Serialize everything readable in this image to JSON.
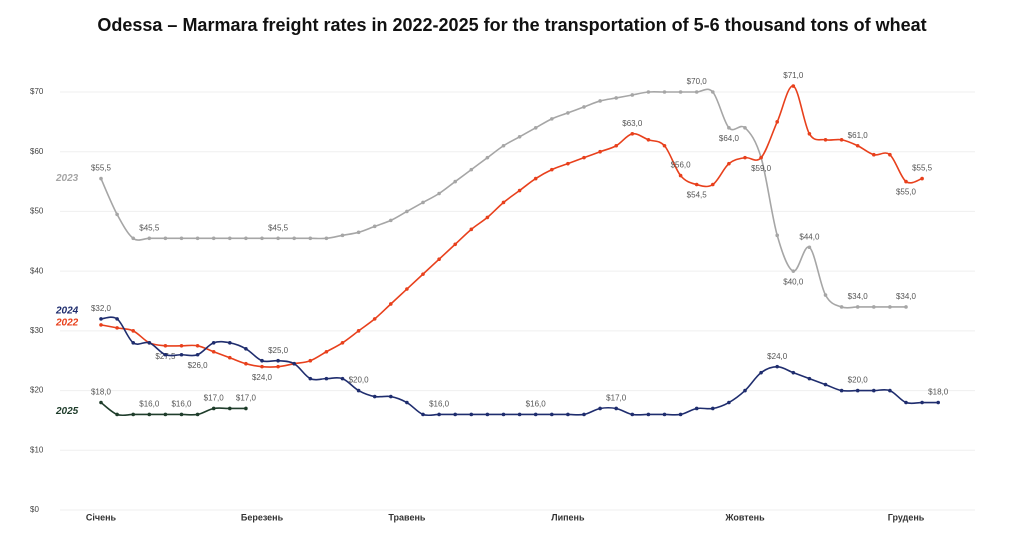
{
  "chart_data": {
    "type": "line",
    "title": "Odessa – Marmara freight rates in 2022-2025 for the transportation of 5-6 thousand tons of wheat",
    "categories": [
      "Січень",
      null,
      null,
      null,
      null,
      null,
      null,
      null,
      null,
      null,
      "Березень",
      null,
      null,
      null,
      null,
      null,
      null,
      null,
      null,
      "Травень",
      null,
      null,
      null,
      null,
      null,
      null,
      null,
      null,
      null,
      "Липень",
      null,
      null,
      null,
      null,
      null,
      null,
      null,
      null,
      null,
      null,
      "Жовтень",
      null,
      null,
      null,
      null,
      null,
      null,
      null,
      null,
      null,
      "Грудень",
      null,
      null
    ],
    "ylim": [
      0,
      70
    ],
    "yticks": [
      {
        "value": 0,
        "label": "$0"
      },
      {
        "value": 10,
        "label": "$10"
      },
      {
        "value": 20,
        "label": "$20"
      },
      {
        "value": 30,
        "label": "$30"
      },
      {
        "value": 40,
        "label": "$40"
      },
      {
        "value": 50,
        "label": "$50"
      },
      {
        "value": 60,
        "label": "$60"
      },
      {
        "value": 70,
        "label": "$70"
      }
    ],
    "grid": true,
    "series": [
      {
        "name": "2023",
        "color": "#a6a6a6",
        "values": [
          55.5,
          49.5,
          45.5,
          45.5,
          45.5,
          45.5,
          45.5,
          45.5,
          45.5,
          45.5,
          45.5,
          45.5,
          45.5,
          45.5,
          45.5,
          46,
          46.5,
          47.5,
          48.5,
          50,
          51.5,
          53,
          55,
          57,
          59,
          61,
          62.5,
          64,
          65.5,
          66.5,
          67.5,
          68.5,
          69,
          69.5,
          70,
          70,
          70,
          70,
          70,
          64,
          64,
          59,
          46,
          40,
          44,
          36,
          34,
          34,
          34,
          34,
          34,
          null,
          null
        ],
        "value_labels": [
          "$55,5",
          null,
          null,
          "$45,5",
          null,
          null,
          null,
          null,
          null,
          null,
          null,
          "$45,5",
          null,
          null,
          null,
          null,
          null,
          null,
          null,
          null,
          null,
          null,
          null,
          null,
          null,
          null,
          null,
          null,
          null,
          null,
          null,
          null,
          null,
          null,
          null,
          null,
          null,
          "$70,0",
          null,
          "$64,0",
          null,
          null,
          null,
          "$40,0",
          "$44,0",
          null,
          null,
          "$34,0",
          null,
          null,
          "$34,0",
          null,
          null
        ]
      },
      {
        "name": "2022",
        "color": "#e8401c",
        "values": [
          31,
          30.5,
          30,
          28,
          27.5,
          27.5,
          27.5,
          26.5,
          25.5,
          24.5,
          24,
          24,
          24.5,
          25,
          26.5,
          28,
          30,
          32,
          34.5,
          37,
          39.5,
          42,
          44.5,
          47,
          49,
          51.5,
          53.5,
          55.5,
          57,
          58,
          59,
          60,
          61,
          63,
          62,
          61,
          56,
          54.5,
          54.5,
          58,
          59,
          59,
          65,
          71,
          63,
          62,
          62,
          61,
          59.5,
          59.5,
          55,
          55.5,
          null
        ],
        "value_labels": [
          null,
          null,
          null,
          null,
          "$27,5",
          null,
          null,
          null,
          null,
          null,
          "$24,0",
          null,
          null,
          null,
          null,
          null,
          null,
          null,
          null,
          null,
          null,
          null,
          null,
          null,
          null,
          null,
          null,
          null,
          null,
          null,
          null,
          null,
          null,
          "$63,0",
          null,
          null,
          "$56,0",
          "$54,5",
          null,
          null,
          null,
          "$59,0",
          null,
          "$71,0",
          null,
          null,
          null,
          "$61,0",
          null,
          null,
          "$55,0",
          "$55,5",
          null
        ]
      },
      {
        "name": "2024",
        "color": "#1f2d6e",
        "values": [
          32,
          32,
          28,
          28,
          26,
          26,
          26,
          28,
          28,
          27,
          25,
          25,
          24.5,
          22,
          22,
          22,
          20,
          19,
          19,
          18,
          16,
          16,
          16,
          16,
          16,
          16,
          16,
          16,
          16,
          16,
          16,
          17,
          17,
          16,
          16,
          16,
          16,
          17,
          17,
          18,
          20,
          23,
          24,
          23,
          22,
          21,
          20,
          20,
          20,
          20,
          18,
          18,
          18
        ],
        "value_labels": [
          "$32,0",
          null,
          null,
          null,
          null,
          null,
          "$26,0",
          null,
          null,
          null,
          null,
          "$25,0",
          null,
          null,
          null,
          null,
          "$20,0",
          null,
          null,
          null,
          null,
          "$16,0",
          null,
          null,
          null,
          null,
          null,
          "$16,0",
          null,
          null,
          null,
          null,
          "$17,0",
          null,
          null,
          null,
          null,
          null,
          null,
          null,
          null,
          null,
          "$24,0",
          null,
          null,
          null,
          null,
          "$20,0",
          null,
          null,
          null,
          null,
          "$18,0"
        ]
      },
      {
        "name": "2025",
        "color": "#1f3d2b",
        "values": [
          18,
          16,
          16,
          16,
          16,
          16,
          16,
          17,
          17,
          17,
          null,
          null,
          null,
          null,
          null,
          null,
          null,
          null,
          null,
          null,
          null,
          null,
          null,
          null,
          null,
          null,
          null,
          null,
          null,
          null,
          null,
          null,
          null,
          null,
          null,
          null,
          null,
          null,
          null,
          null,
          null,
          null,
          null,
          null,
          null,
          null,
          null,
          null,
          null,
          null,
          null,
          null,
          null
        ],
        "value_labels": [
          "$18,0",
          null,
          null,
          "$16,0",
          null,
          "$16,0",
          null,
          "$17,0",
          null,
          "$17,0",
          null,
          null,
          null,
          null,
          null,
          null,
          null,
          null,
          null,
          null,
          null,
          null,
          null,
          null,
          null,
          null,
          null,
          null,
          null,
          null,
          null,
          null,
          null,
          null,
          null,
          null,
          null,
          null,
          null,
          null,
          null,
          null,
          null,
          null,
          null,
          null,
          null,
          null,
          null,
          null,
          null,
          null,
          null
        ]
      }
    ]
  }
}
